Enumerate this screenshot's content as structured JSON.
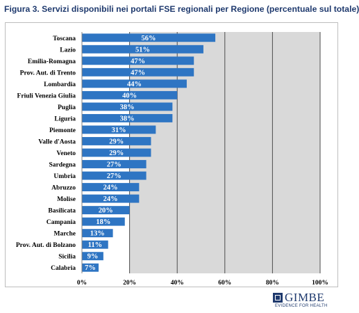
{
  "title": "Figura 3. Servizi disponibili nei portali FSE regionali per Regione (percentuale sul totale)",
  "chart_data": {
    "type": "bar",
    "orientation": "horizontal",
    "categories": [
      "Toscana",
      "Lazio",
      "Emilia-Romagna",
      "Prov. Aut. di Trento",
      "Lombardia",
      "Friuli Venezia Giulia",
      "Puglia",
      "Liguria",
      "Piemonte",
      "Valle d'Aosta",
      "Veneto",
      "Sardegna",
      "Umbria",
      "Abruzzo",
      "Molise",
      "Basilicata",
      "Campania",
      "Marche",
      "Prov. Aut. di Bolzano",
      "Sicilia",
      "Calabria"
    ],
    "values": [
      56,
      51,
      47,
      47,
      44,
      40,
      38,
      38,
      31,
      29,
      29,
      27,
      27,
      24,
      24,
      20,
      18,
      13,
      11,
      9,
      7
    ],
    "data_labels": [
      "56%",
      "51%",
      "47%",
      "47%",
      "44%",
      "40%",
      "38%",
      "38%",
      "31%",
      "29%",
      "29%",
      "27%",
      "27%",
      "24%",
      "24%",
      "20%",
      "18%",
      "13%",
      "11%",
      "9%",
      "7%"
    ],
    "xlim": [
      0,
      100
    ],
    "x_ticks": [
      0,
      20,
      40,
      60,
      80,
      100
    ],
    "x_tick_labels": [
      "0%",
      "20%",
      "40%",
      "60%",
      "80%",
      "100%"
    ],
    "bar_color": "#2e75c3",
    "plot_background": "#d9d9d9",
    "grid": true,
    "legend": "none"
  },
  "logo": {
    "name": "GIMBE",
    "tagline": "EVIDENCE FOR HEALTH"
  }
}
